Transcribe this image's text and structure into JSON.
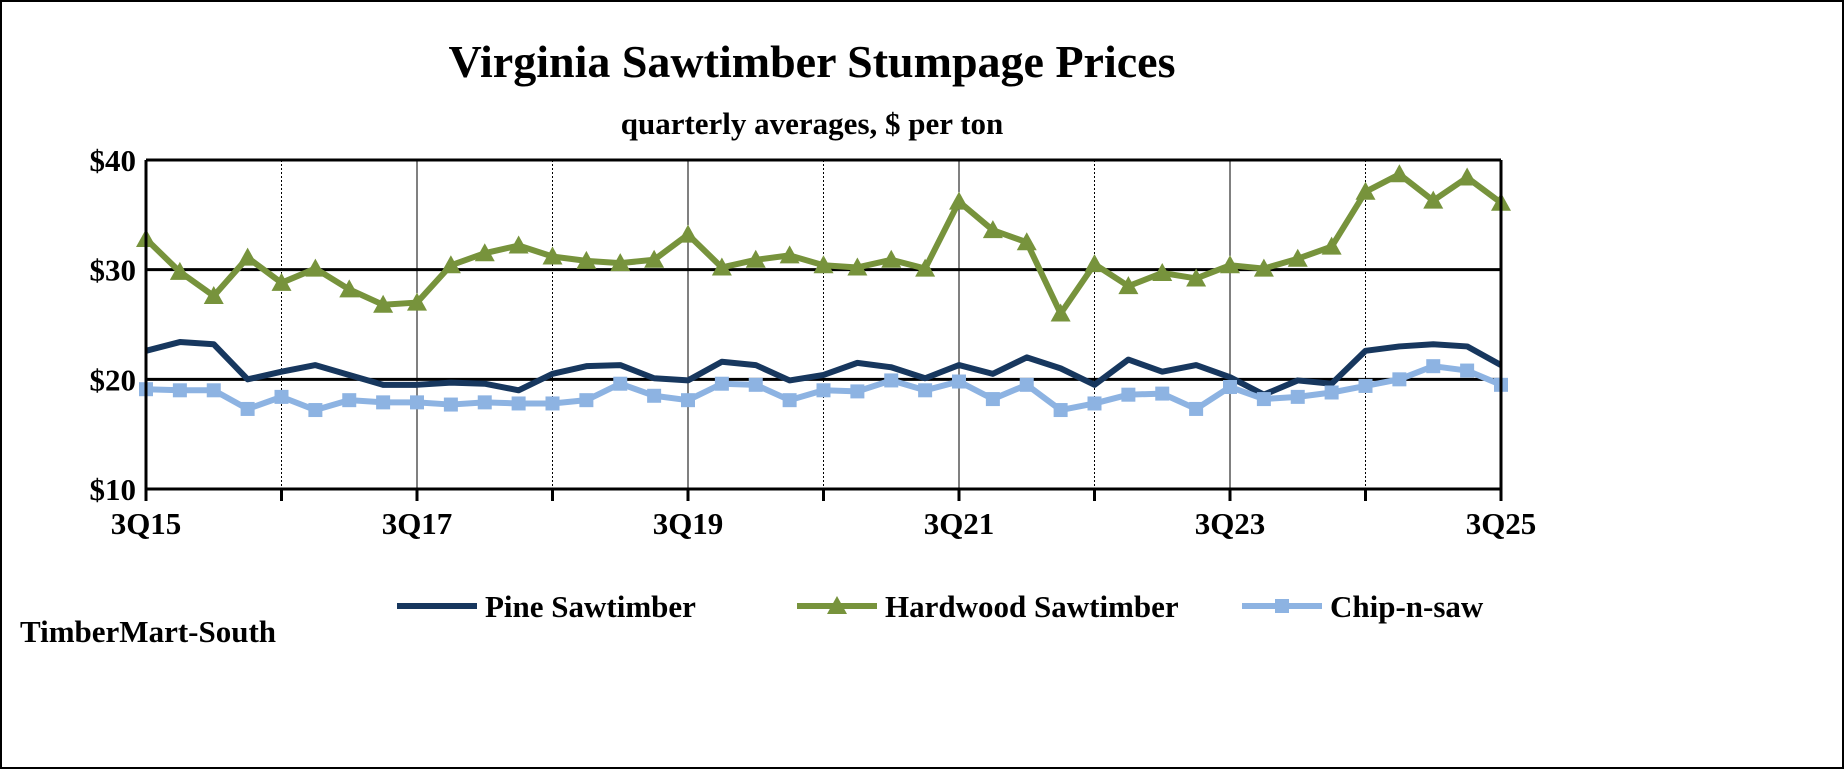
{
  "chart_data": {
    "type": "line",
    "title": "Virginia Sawtimber Stumpage Prices",
    "subtitle": "quarterly averages, $ per ton",
    "source": "TimberMart-South",
    "xlabel": "",
    "ylabel": "",
    "ylim": [
      10,
      40
    ],
    "yticks": [
      10,
      20,
      30,
      40
    ],
    "ytick_labels": [
      "$10",
      "$20",
      "$30",
      "$40"
    ],
    "x_start": "3Q15",
    "x_count": 41,
    "xtick_labels": [
      "3Q15",
      "3Q17",
      "3Q19",
      "3Q21",
      "3Q23",
      "3Q25"
    ],
    "legend_position": "bottom",
    "grid": true,
    "series": [
      {
        "name": "Pine Sawtimber",
        "color": "#17375e",
        "marker": "none",
        "values": [
          22.6,
          23.4,
          23.2,
          20.0,
          20.7,
          21.3,
          20.4,
          19.5,
          19.5,
          19.7,
          19.6,
          19.0,
          20.5,
          21.2,
          21.3,
          20.1,
          19.9,
          21.6,
          21.3,
          19.9,
          20.4,
          21.5,
          21.1,
          20.1,
          21.3,
          20.5,
          22.0,
          21.0,
          19.5,
          21.8,
          20.7,
          21.3,
          20.2,
          18.6,
          19.9,
          19.6,
          22.6,
          23.0,
          23.2,
          23.0,
          21.3
        ]
      },
      {
        "name": "Hardwood Sawtimber",
        "color": "#77933c",
        "marker": "triangle",
        "values": [
          32.8,
          29.8,
          27.6,
          31.1,
          28.8,
          30.1,
          28.2,
          26.8,
          27.0,
          30.4,
          31.5,
          32.2,
          31.2,
          30.8,
          30.6,
          30.9,
          33.2,
          30.2,
          30.9,
          31.3,
          30.4,
          30.2,
          30.9,
          30.1,
          36.2,
          33.6,
          32.5,
          26.0,
          30.5,
          28.5,
          29.7,
          29.2,
          30.4,
          30.1,
          31.0,
          32.1,
          37.1,
          38.7,
          36.3,
          38.4,
          36.1
        ]
      },
      {
        "name": "Chip-n-saw",
        "color": "#8db3e2",
        "marker": "square",
        "values": [
          19.1,
          19.0,
          19.0,
          17.3,
          18.4,
          17.2,
          18.1,
          17.9,
          17.9,
          17.7,
          17.9,
          17.8,
          17.8,
          18.1,
          19.6,
          18.5,
          18.1,
          19.6,
          19.5,
          18.1,
          19.0,
          18.9,
          19.9,
          19.0,
          19.8,
          18.2,
          19.5,
          17.2,
          17.8,
          18.6,
          18.7,
          17.3,
          19.3,
          18.2,
          18.4,
          18.8,
          19.4,
          20.0,
          21.2,
          20.8,
          19.5
        ]
      }
    ]
  }
}
